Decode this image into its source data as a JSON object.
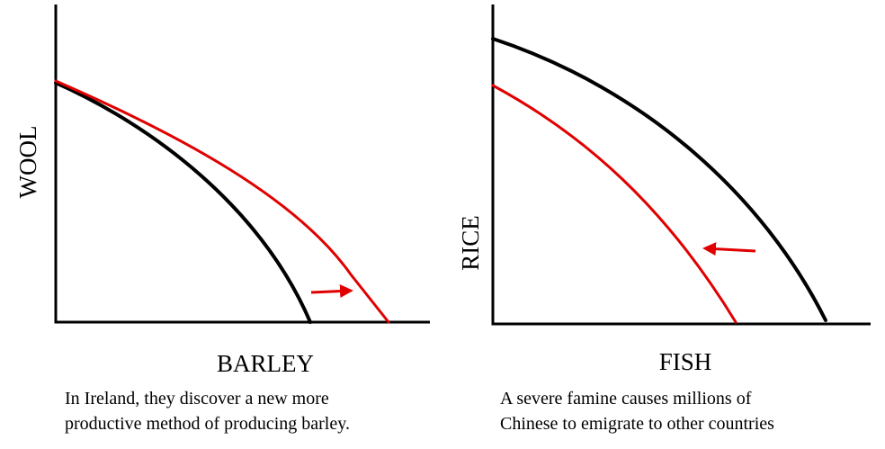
{
  "panels": [
    {
      "y_axis_label": "WOOL",
      "x_axis_label": "BARLEY",
      "caption": [
        "In Ireland, they discover a new more",
        "productive method of producing barley."
      ]
    },
    {
      "y_axis_label": "RICE",
      "x_axis_label": "FISH",
      "caption": [
        "A severe famine causes millions of",
        "Chinese to emigrate to other countries"
      ]
    }
  ]
}
